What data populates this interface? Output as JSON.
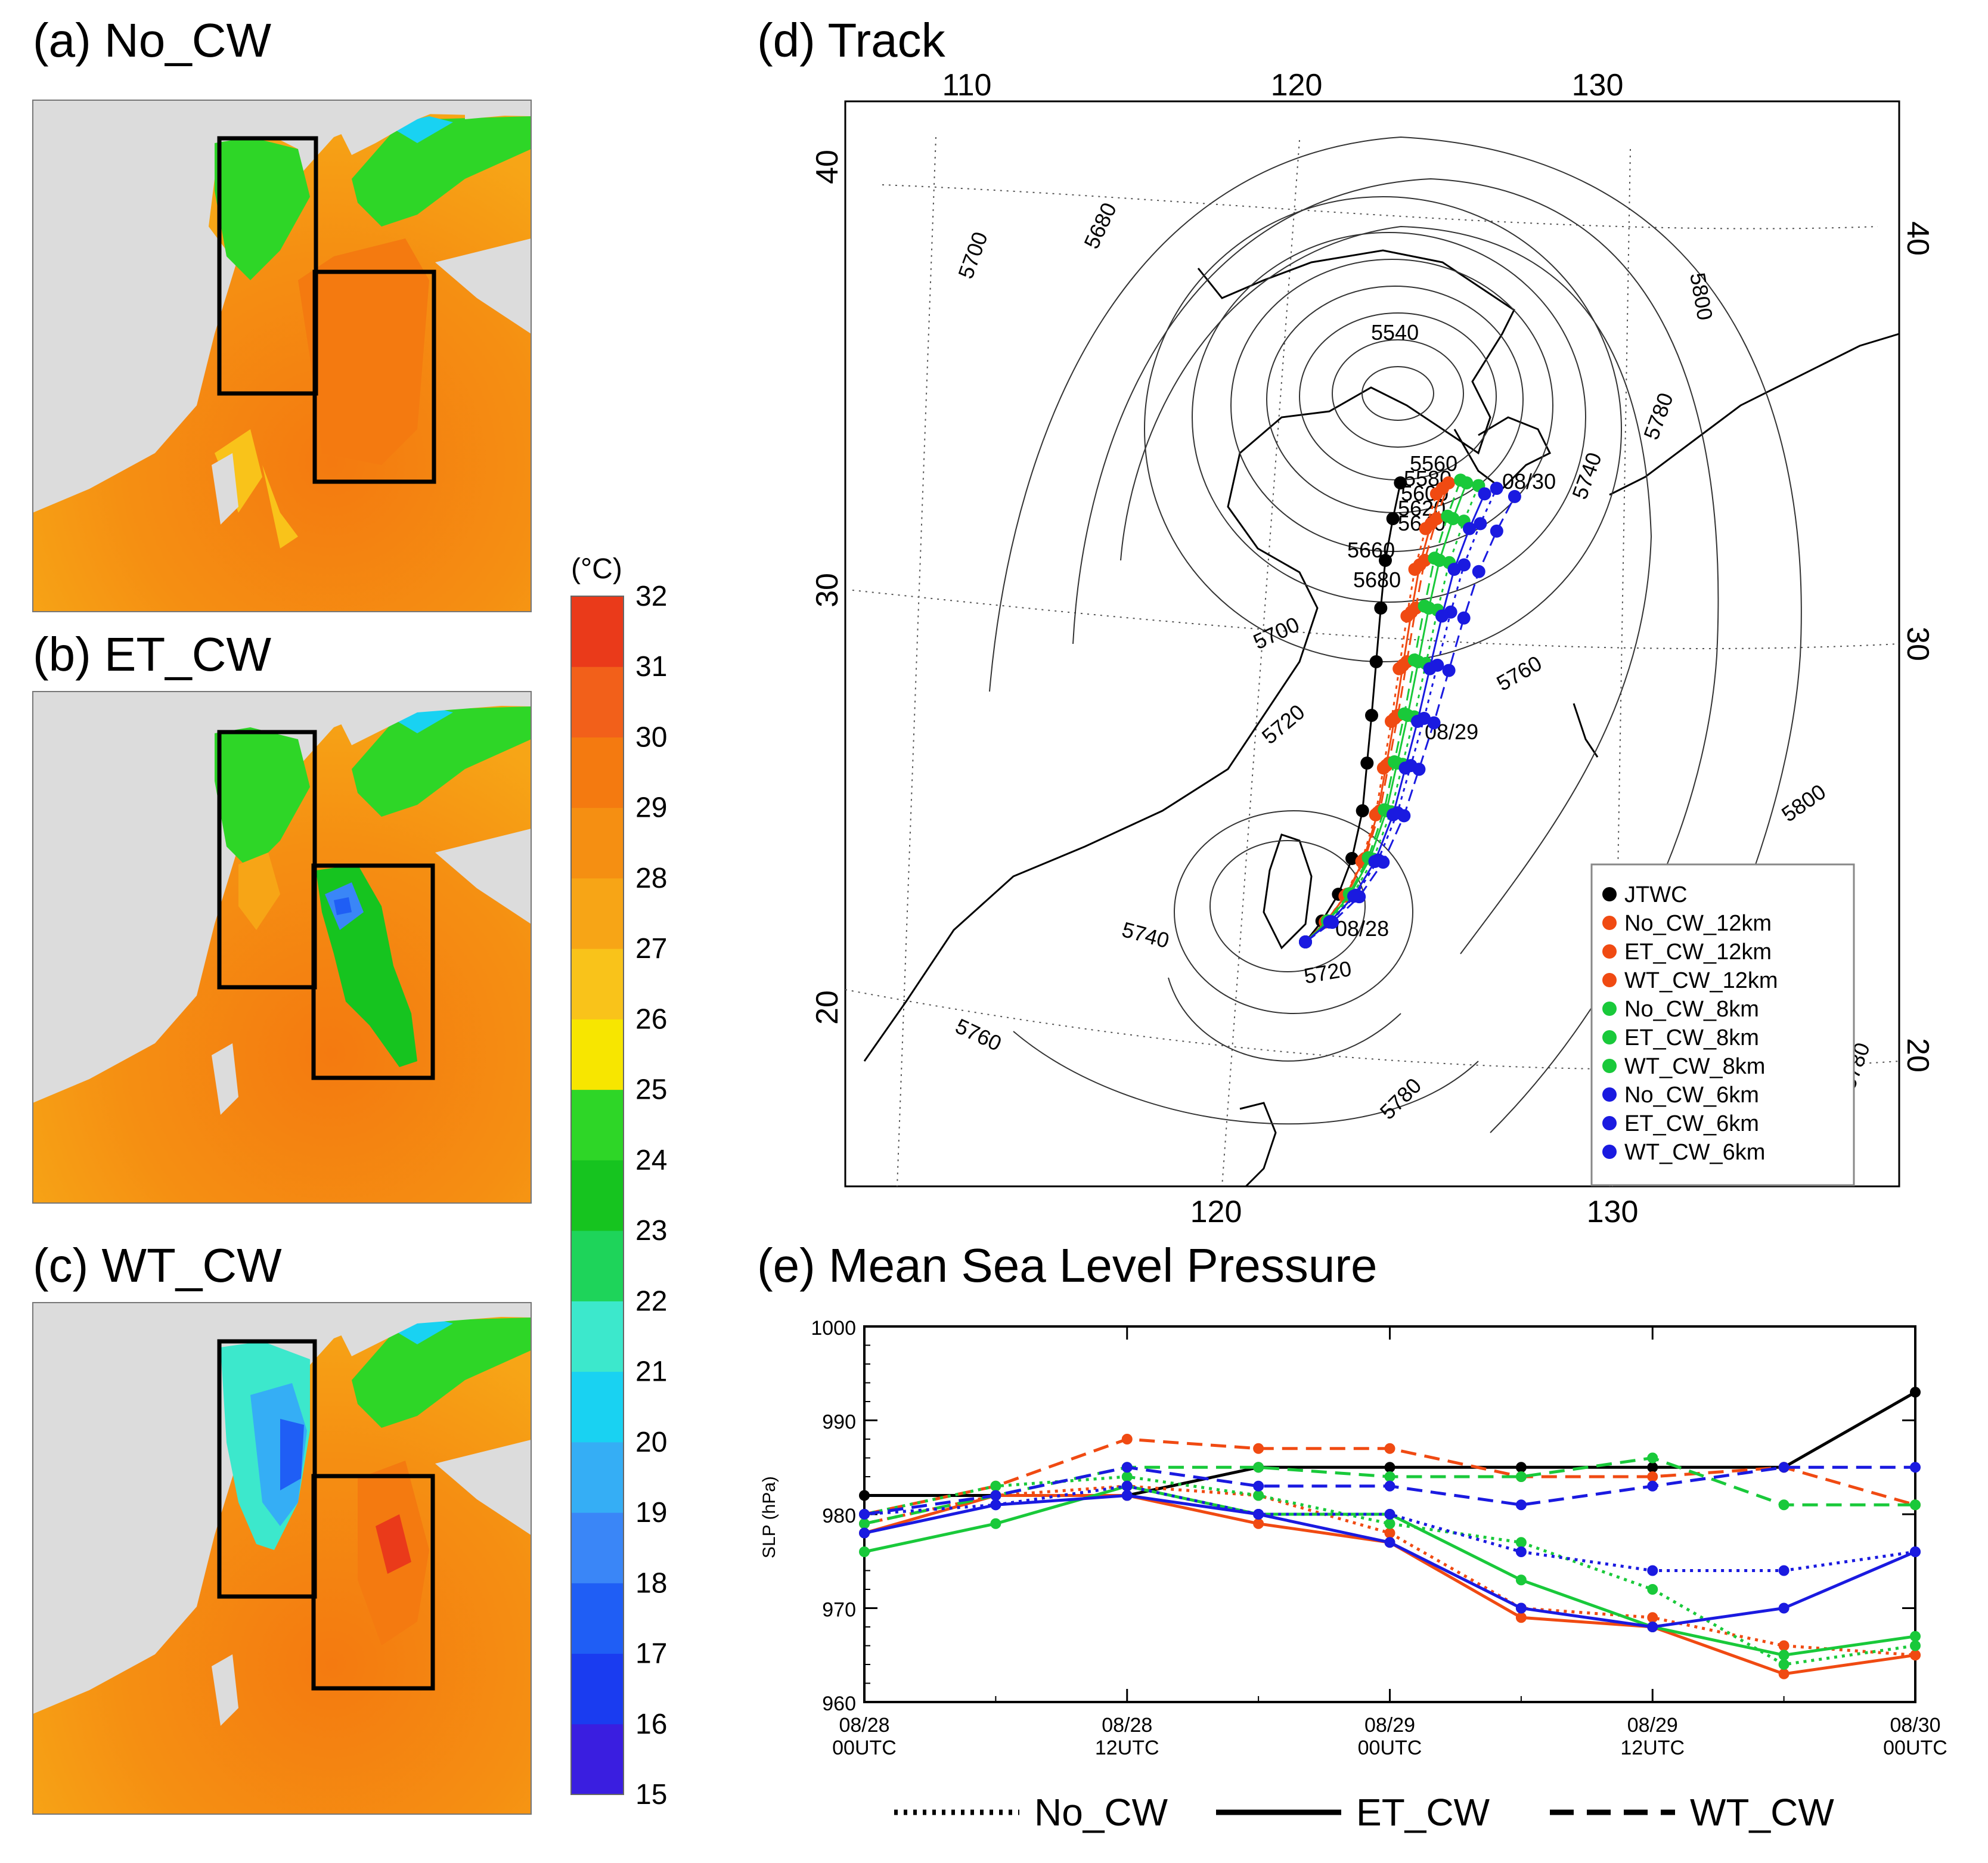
{
  "panels": {
    "a": {
      "title": "(a) No_CW"
    },
    "b": {
      "title": "(b) ET_CW"
    },
    "c": {
      "title": "(c) WT_CW"
    },
    "d": {
      "title": "(d) Track"
    },
    "e": {
      "title": "(e) Mean Sea Level Pressure"
    }
  },
  "colorbar": {
    "unit": "(°C)",
    "levels": [
      15,
      16,
      17,
      18,
      19,
      20,
      21,
      22,
      23,
      24,
      25,
      26,
      27,
      28,
      29,
      30,
      31,
      32
    ],
    "colors": [
      "#3a1ee0",
      "#1a3cf0",
      "#1f5ef5",
      "#3a86f7",
      "#35aef5",
      "#19d2f2",
      "#3ce8cc",
      "#1ed45a",
      "#16c41f",
      "#2ed627",
      "#f7e600",
      "#f9c31a",
      "#f7a516",
      "#f58f12",
      "#f47a10",
      "#f2601a",
      "#ea3a1a"
    ]
  },
  "track_map": {
    "lon_top_labels": [
      "110",
      "120",
      "130"
    ],
    "lon_bottom_labels": [
      "120",
      "130"
    ],
    "lat_left_labels": [
      "40",
      "30",
      "20"
    ],
    "lat_right_labels": [
      "40",
      "30",
      "20"
    ],
    "contour_labels": [
      "5700",
      "5680",
      "5540",
      "5800",
      "5780",
      "5740",
      "5660",
      "5680",
      "5700",
      "5720",
      "5760",
      "5740",
      "5720",
      "5760",
      "5780",
      "5780",
      "5800",
      "5560",
      "5580",
      "5600",
      "5620",
      "5640"
    ],
    "date_labels": [
      "08/30",
      "08/29",
      "08/28"
    ],
    "legend": [
      {
        "label": "JTWC",
        "color": "#000000"
      },
      {
        "label": "No_CW_12km",
        "color": "#f04a12"
      },
      {
        "label": "ET_CW_12km",
        "color": "#f04a12"
      },
      {
        "label": "WT_CW_12km",
        "color": "#f04a12"
      },
      {
        "label": "No_CW_8km",
        "color": "#19c93a"
      },
      {
        "label": "ET_CW_8km",
        "color": "#19c93a"
      },
      {
        "label": "WT_CW_8km",
        "color": "#19c93a"
      },
      {
        "label": "No_CW_6km",
        "color": "#1a1ae0"
      },
      {
        "label": "ET_CW_6km",
        "color": "#1a1ae0"
      },
      {
        "label": "WT_CW_6km",
        "color": "#1a1ae0"
      }
    ]
  },
  "chart_data": {
    "type": "line",
    "ylabel": "SLP (hPa)",
    "ylim": [
      960,
      1000
    ],
    "yticks": [
      960,
      970,
      980,
      990,
      1000
    ],
    "x_tick_labels": [
      {
        "date": "08/28",
        "time": "00UTC"
      },
      {
        "date": "08/28",
        "time": "12UTC"
      },
      {
        "date": "08/29",
        "time": "00UTC"
      },
      {
        "date": "08/29",
        "time": "12UTC"
      },
      {
        "date": "08/30",
        "time": "00UTC"
      }
    ],
    "x": [
      0,
      6,
      12,
      18,
      24,
      30,
      36,
      42,
      48
    ],
    "series": [
      {
        "name": "JTWC",
        "color": "#000000",
        "style": "solid",
        "values": [
          982,
          982,
          982,
          985,
          985,
          985,
          985,
          985,
          993
        ]
      },
      {
        "name": "No_CW_12km",
        "color": "#f04a12",
        "style": "dotted",
        "values": [
          979,
          982,
          983,
          982,
          978,
          970,
          969,
          966,
          965
        ]
      },
      {
        "name": "ET_CW_12km",
        "color": "#f04a12",
        "style": "solid",
        "values": [
          978,
          982,
          982,
          979,
          977,
          969,
          968,
          963,
          965
        ]
      },
      {
        "name": "WT_CW_12km",
        "color": "#f04a12",
        "style": "dashed",
        "values": [
          980,
          983,
          988,
          987,
          987,
          984,
          984,
          985,
          981
        ]
      },
      {
        "name": "No_CW_8km",
        "color": "#19c93a",
        "style": "dotted",
        "values": [
          980,
          983,
          984,
          982,
          979,
          977,
          972,
          964,
          966
        ]
      },
      {
        "name": "ET_CW_8km",
        "color": "#19c93a",
        "style": "solid",
        "values": [
          976,
          979,
          983,
          980,
          980,
          973,
          968,
          965,
          967
        ]
      },
      {
        "name": "WT_CW_8km",
        "color": "#19c93a",
        "style": "dashed",
        "values": [
          979,
          982,
          985,
          985,
          984,
          984,
          986,
          981,
          981
        ]
      },
      {
        "name": "No_CW_6km",
        "color": "#1a1ae0",
        "style": "dotted",
        "values": [
          980,
          981,
          983,
          980,
          980,
          976,
          974,
          974,
          976
        ]
      },
      {
        "name": "ET_CW_6km",
        "color": "#1a1ae0",
        "style": "solid",
        "values": [
          978,
          981,
          982,
          980,
          977,
          970,
          968,
          970,
          976
        ]
      },
      {
        "name": "WT_CW_6km",
        "color": "#1a1ae0",
        "style": "dashed",
        "values": [
          980,
          982,
          985,
          983,
          983,
          981,
          983,
          985,
          985
        ]
      }
    ],
    "line_style_legend": [
      {
        "label": "No_CW",
        "style": "dotted"
      },
      {
        "label": "ET_CW",
        "style": "solid"
      },
      {
        "label": "WT_CW",
        "style": "dashed"
      }
    ]
  }
}
